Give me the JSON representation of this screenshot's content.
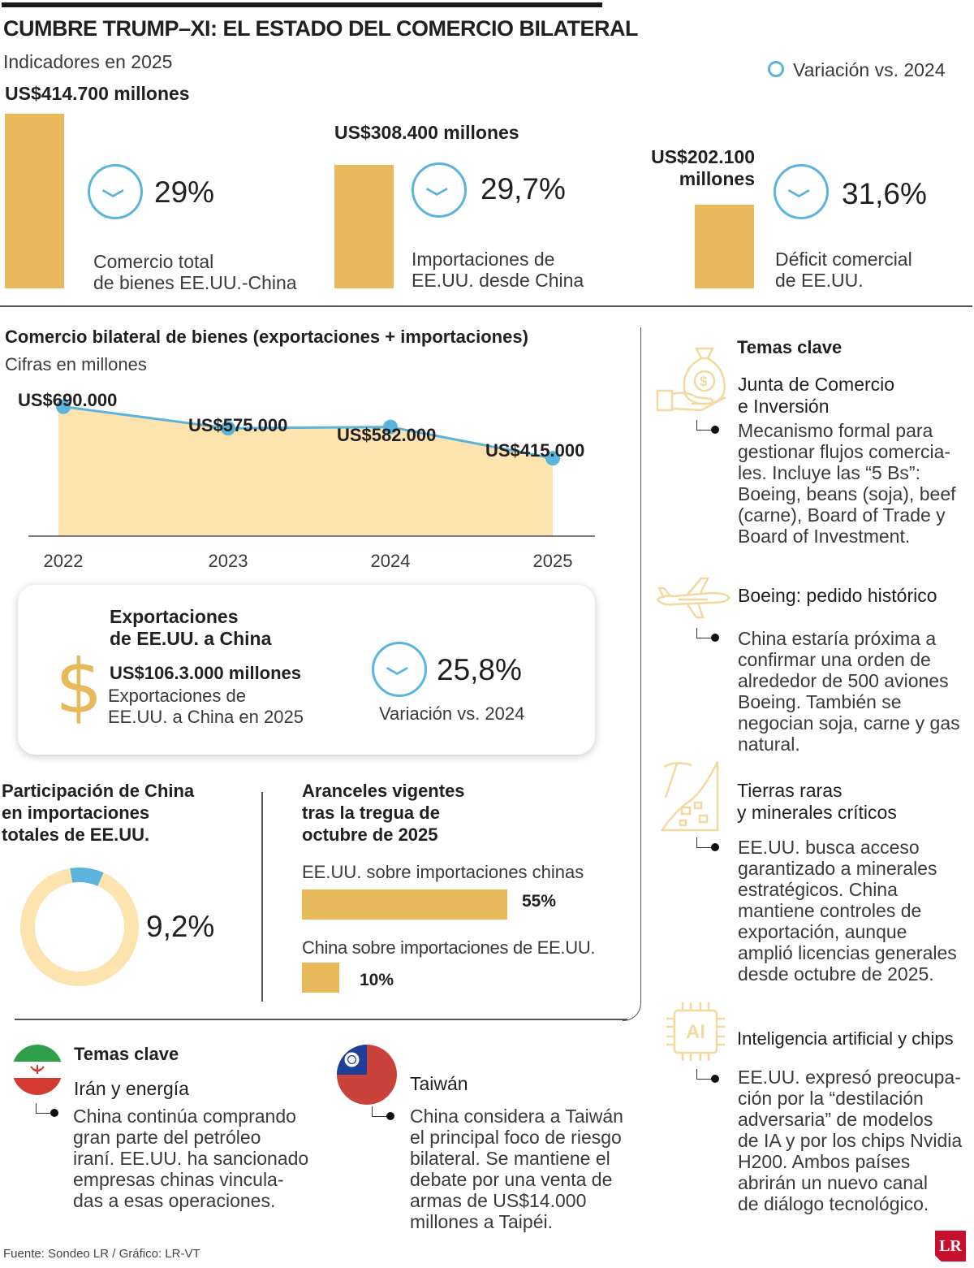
{
  "header": {
    "title": "CUMBRE TRUMP–XI: EL ESTADO DEL COMERCIO BILATERAL",
    "subtitle": "Indicadores en 2025",
    "legend": "Variación vs. 2024"
  },
  "indicators": [
    {
      "value": "US$414.700 millones",
      "change": "29%",
      "label1": "Comercio total",
      "label2": "de bienes EE.UU.-China"
    },
    {
      "value": "US$308.400 millones",
      "change": "29,7%",
      "label1": "Importaciones de",
      "label2": "EE.UU. desde China"
    },
    {
      "value1": "US$202.100",
      "value2": "millones",
      "change": "31,6%",
      "label1": "Déficit comercial",
      "label2": "de EE.UU."
    }
  ],
  "trade_section": {
    "title": "Comercio bilateral de bienes (exportaciones + importaciones)",
    "subtitle": "Cifras en millones"
  },
  "exports_box": {
    "title1": "Exportaciones",
    "title2": "de EE.UU. a China",
    "value": "US$106.3.000 millones",
    "desc1": "Exportaciones de",
    "desc2": "EE.UU. a China en 2025",
    "change": "25,8%",
    "change_label": "Variación vs. 2024"
  },
  "share": {
    "title1": "Participación de China",
    "title2": "en importaciones",
    "title3": "totales de EE.UU.",
    "value": "9,2%",
    "fraction": 0.092
  },
  "tariffs": {
    "title1": "Aranceles vigentes",
    "title2": "tras la tregua de",
    "title3": "octubre de 2025",
    "items": [
      {
        "label": "EE.UU. sobre importaciones chinas",
        "value": "55%",
        "pct": 55
      },
      {
        "label": "China sobre importaciones de EE.UU.",
        "value": "10%",
        "pct": 10
      }
    ]
  },
  "key_topics_right": {
    "heading": "Temas clave",
    "items": [
      {
        "title1": "Junta de Comercio",
        "title2": "e Inversión",
        "icon": "money-bag-hand-icon",
        "body": [
          "Mecanismo formal para",
          "gestionar flujos comercia-",
          "les. Incluye las “5 Bs”:",
          "Boeing, beans (soja), beef",
          "(carne), Board of Trade y",
          "Board of Investment."
        ]
      },
      {
        "title1": "Boeing: pedido histórico",
        "title2": "",
        "icon": "airplane-icon",
        "body": [
          "China estaría próxima a",
          "confirmar una orden de",
          "alrededor de 500 aviones",
          "Boeing. También se",
          "negocian soja, carne y gas",
          "natural."
        ]
      },
      {
        "title1": "Tierras raras",
        "title2": "y minerales críticos",
        "icon": "pickaxe-minerals-icon",
        "body": [
          "EE.UU. busca acceso",
          "garantizado a minerales",
          "estratégicos. China",
          "mantiene controles de",
          "exportación, aunque",
          "amplió licencias generales",
          "desde octubre de 2025."
        ]
      },
      {
        "title1": "Inteligencia artificial y chips",
        "title2": "",
        "icon": "ai-chip-icon",
        "icon_text": "AI",
        "body": [
          "EE.UU. expresó preocupa-",
          "ción por la “destilación",
          "adversaria” de modelos",
          "de IA y por los chips Nvidia",
          "H200. Ambos países",
          "abrirán un nuevo canal",
          "de diálogo tecnológico."
        ]
      }
    ]
  },
  "key_topics_bottom": {
    "heading": "Temas clave",
    "iran": {
      "title": "Irán y energía",
      "icon": "iran-flag-icon",
      "body": [
        "China continúa comprando",
        "gran parte del petróleo",
        "iraní. EE.UU. ha sancionado",
        "empresas chinas vincula-",
        "das a esas operaciones."
      ]
    },
    "taiwan": {
      "title": "Taiwán",
      "icon": "taiwan-flag-icon",
      "body": [
        "China considera a Taiwán",
        "el principal foco de riesgo",
        "bilateral. Se mantiene el",
        "debate por una venta de",
        "armas de US$14.000",
        "millones a Taipéi."
      ]
    }
  },
  "footer": {
    "source": "Fuente: Sondeo LR / Gráfico: LR-VT",
    "logo": "LR"
  },
  "colors": {
    "gold": "#e8b95a",
    "area": "#fde3ae",
    "blue": "#5ab4dc",
    "text": "#231f20"
  },
  "chart_data": [
    {
      "type": "bar",
      "categories": [
        "Comercio total de bienes EE.UU.-China",
        "Importaciones de EE.UU. desde China",
        "Déficit comercial de EE.UU."
      ],
      "values": [
        414700,
        308400,
        202100
      ],
      "changes_pct": [
        -29,
        -29.7,
        -31.6
      ],
      "title": "",
      "xlabel": "",
      "ylabel": ""
    },
    {
      "type": "area",
      "x": [
        "2022",
        "2023",
        "2024",
        "2025"
      ],
      "values": [
        690000,
        575000,
        582000,
        415000
      ],
      "labels": [
        "US$690.000",
        "US$575.000",
        "US$582.000",
        "US$415.000"
      ],
      "title": "Comercio bilateral de bienes (exportaciones + importaciones)",
      "ylim": [
        0,
        700000
      ]
    },
    {
      "type": "pie",
      "categories": [
        "China"
      ],
      "values": [
        9.2
      ],
      "title": "Participación de China en importaciones totales de EE.UU."
    },
    {
      "type": "bar",
      "categories": [
        "EE.UU. sobre importaciones chinas",
        "China sobre importaciones de EE.UU."
      ],
      "values": [
        55,
        10
      ],
      "title": "Aranceles vigentes tras la tregua de octubre de 2025"
    }
  ]
}
